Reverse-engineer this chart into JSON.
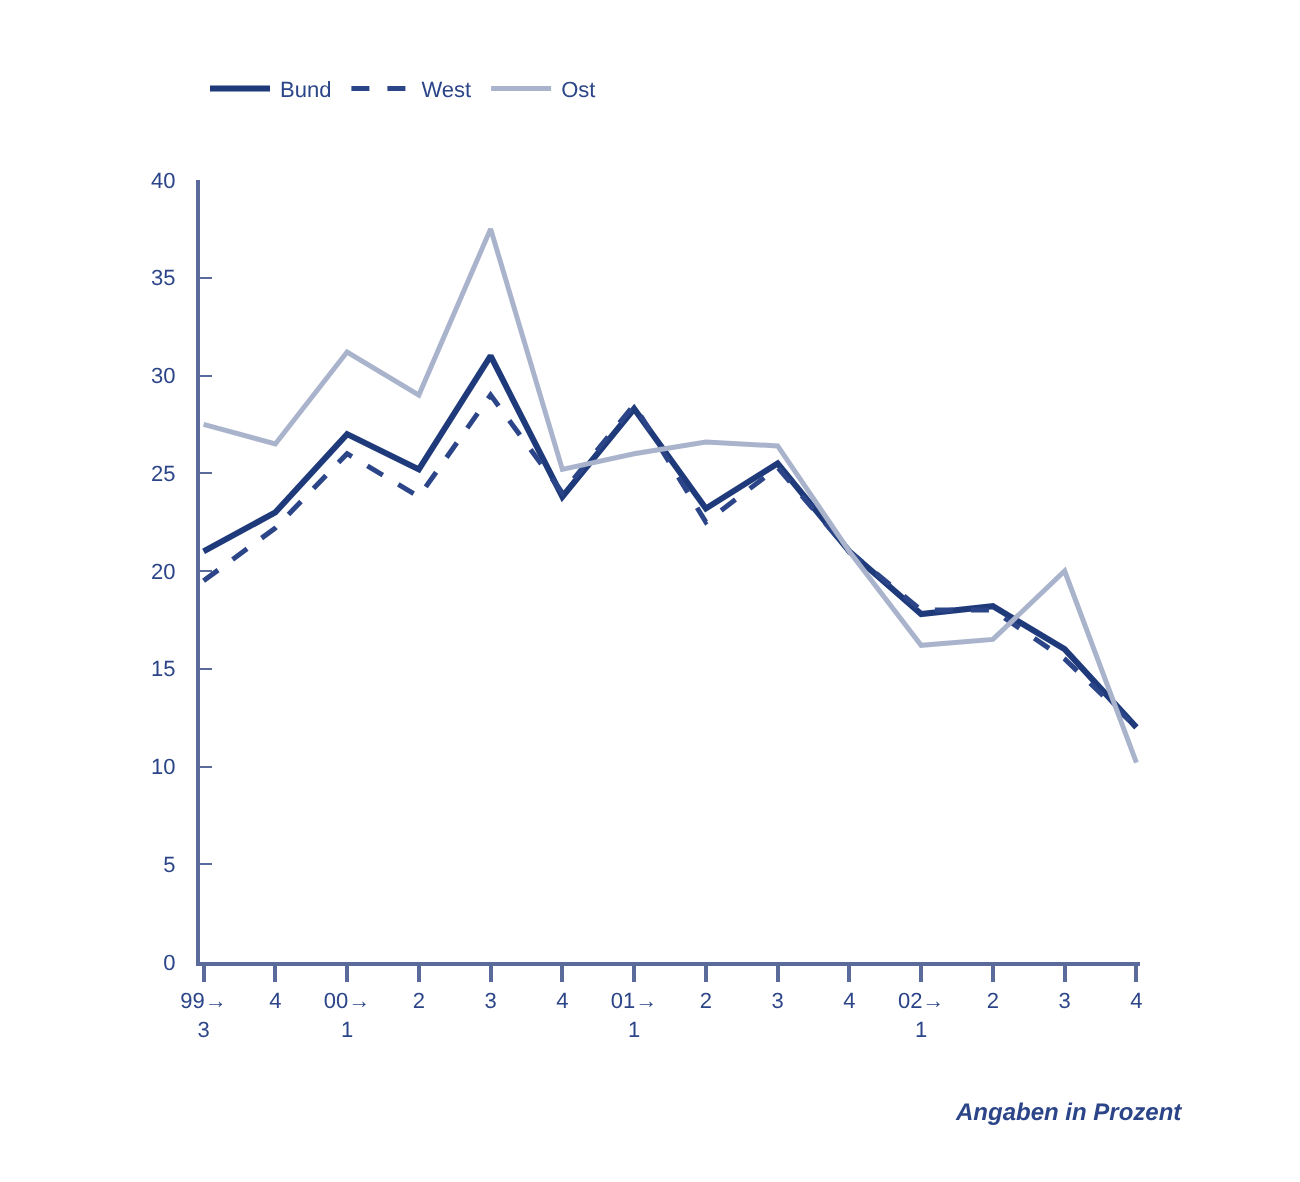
{
  "chart_data": {
    "type": "line",
    "categories": [
      "99→\n3",
      "4",
      "00→\n1",
      "2",
      "3",
      "4",
      "01→\n1",
      "2",
      "3",
      "4",
      "02→\n1",
      "2",
      "3",
      "4"
    ],
    "series": [
      {
        "name": "Bund",
        "color": "#1f3a7a",
        "line_style": "solid",
        "values": [
          21,
          23,
          27,
          25.2,
          31,
          23.8,
          28.3,
          23.2,
          25.5,
          21,
          17.8,
          18.2,
          16,
          12
        ]
      },
      {
        "name": "West",
        "color": "#2b4588",
        "line_style": "dashed",
        "values": [
          19.5,
          22.2,
          26,
          23.8,
          29,
          24,
          28.5,
          22.5,
          25.3,
          21,
          18,
          18,
          15.5,
          12
        ]
      },
      {
        "name": "Ost",
        "color": "#a9b3cc",
        "line_style": "solid",
        "values": [
          27.5,
          26.5,
          31.2,
          29,
          37.5,
          25.2,
          26,
          26.6,
          26.4,
          21,
          16.2,
          16.5,
          20,
          10.2
        ]
      }
    ],
    "ylim": [
      0,
      40
    ],
    "yticks": [
      0,
      5,
      10,
      15,
      20,
      25,
      30,
      35,
      40
    ],
    "legend": "top left",
    "marker": "none",
    "annotations": [
      "Angaben in Prozent"
    ]
  }
}
